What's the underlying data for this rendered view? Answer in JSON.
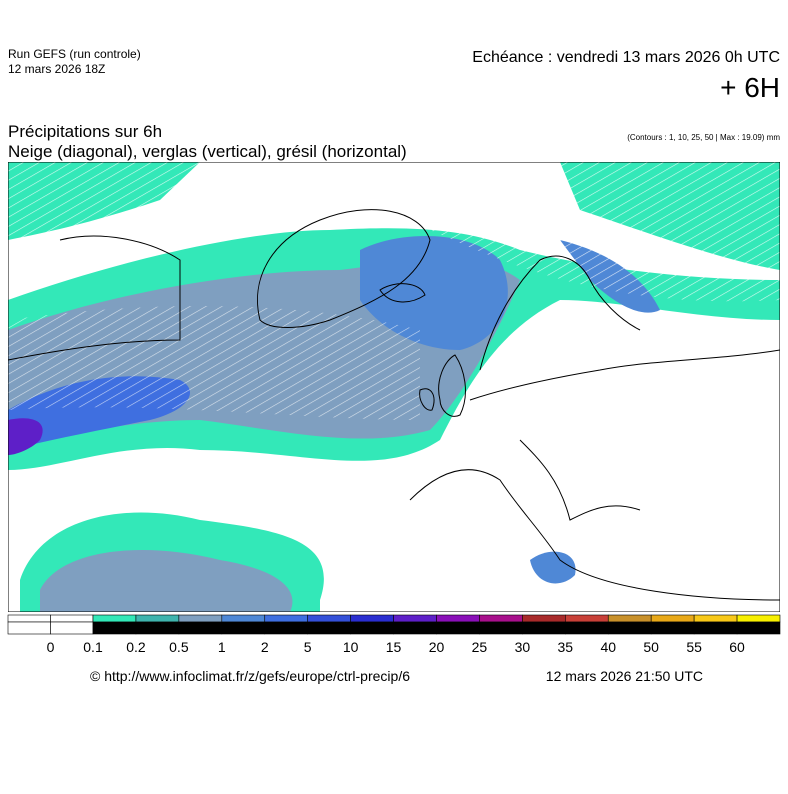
{
  "header": {
    "run": "Run GEFS (run controle)",
    "run_date": "12 mars 2026 18Z",
    "echeance": "Echéance : vendredi 13 mars 2026 0h UTC",
    "offset": "+ 6H"
  },
  "title": {
    "line1": "Précipitations sur 6h",
    "line2": "Neige (diagonal), verglas (vertical), grésil (horizontal)",
    "contours": "(Contours : 1, 10, 25, 50 | Max : 19.09) mm"
  },
  "legend": {
    "labels": [
      "0",
      "0.1",
      "0.2",
      "0.5",
      "1",
      "2",
      "5",
      "10",
      "15",
      "20",
      "25",
      "30",
      "35",
      "40",
      "50",
      "55",
      "60"
    ],
    "colors": [
      "#ffffff",
      "#ffffff",
      "#33e8b8",
      "#3fb4ae",
      "#7f9fc0",
      "#4f88d6",
      "#3f6fe0",
      "#3450d8",
      "#2a2ed0",
      "#5e1fc8",
      "#8a10b8",
      "#a8108c",
      "#a82a2a",
      "#c84038",
      "#c8902a",
      "#e8a818",
      "#f8c818",
      "#f8f000"
    ]
  },
  "footer": {
    "url": "© http://www.infoclimat.fr/z/gefs/europe/ctrl-precip/6",
    "generated": "12 mars 2026 21:50 UTC"
  }
}
